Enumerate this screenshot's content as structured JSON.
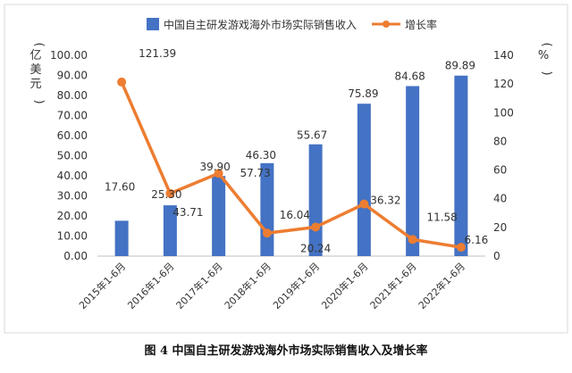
{
  "caption": "图 4 中国自主研发游戏海外市场实际销售收入及增长率",
  "colors": {
    "bar": "#4472C4",
    "line": "#ED7D31",
    "frame": "#d9d9d9",
    "text": "#333333"
  },
  "chart_data": {
    "type": "bar",
    "categories": [
      "2015年1-6月",
      "2016年1-6月",
      "2017年1-6月",
      "2018年1-6月",
      "2019年1-6月",
      "2020年1-6月",
      "2021年1-6月",
      "2022年1-6月"
    ],
    "series": [
      {
        "name": "中国自主研发游戏海外市场实际销售收入",
        "type": "bar",
        "axis": "left",
        "values": [
          17.6,
          25.3,
          39.9,
          46.3,
          55.67,
          75.89,
          84.68,
          89.89
        ],
        "labels": [
          "17.60",
          "25.30",
          "39.90",
          "46.30",
          "55.67",
          "75.89",
          "84.68",
          "89.89"
        ]
      },
      {
        "name": "增长率",
        "type": "line",
        "axis": "right",
        "values": [
          121.39,
          43.71,
          57.73,
          16.04,
          20.24,
          36.32,
          11.58,
          6.16
        ],
        "labels": [
          "121.39",
          "43.71",
          "57.73",
          "16.04",
          "20.24",
          "36.32",
          "11.58",
          "6.16"
        ]
      }
    ],
    "y_left": {
      "label": "(亿美元)",
      "min": 0,
      "max": 100,
      "ticks": [
        "0.00",
        "10.00",
        "20.00",
        "30.00",
        "40.00",
        "50.00",
        "60.00",
        "70.00",
        "80.00",
        "90.00",
        "100.00"
      ]
    },
    "y_right": {
      "label": "(%)",
      "min": 0,
      "max": 140,
      "ticks": [
        "0",
        "20",
        "40",
        "60",
        "80",
        "100",
        "120",
        "140"
      ]
    },
    "legend_position": "top",
    "grid": false
  }
}
